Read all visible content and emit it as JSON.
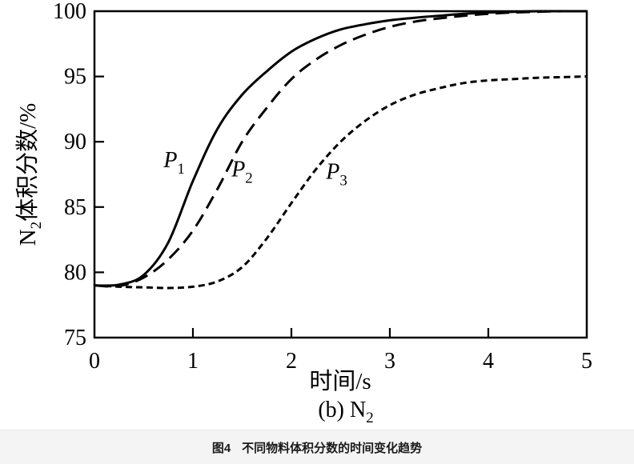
{
  "chart_data": {
    "type": "line",
    "title": "",
    "xlabel": "时间/s",
    "ylabel": {
      "pre": "N",
      "sub": "2",
      "post": "体积分数/%"
    },
    "subtitle": {
      "pre": "(b) N",
      "sub": "2"
    },
    "xlim": [
      0,
      5
    ],
    "ylim": [
      75,
      100
    ],
    "x_ticks": [
      "0",
      "1",
      "2",
      "3",
      "4",
      "5"
    ],
    "y_ticks": [
      "75",
      "80",
      "85",
      "90",
      "95",
      "100"
    ],
    "grid": false,
    "legend_position": "inline-labels",
    "line_color": "#000000",
    "series": [
      {
        "name": "P1",
        "label": {
          "main": "P",
          "sub": "1"
        },
        "line_style": "solid",
        "label_anchor": {
          "t": 0.81,
          "v": 88.6
        },
        "points": [
          [
            0,
            79.0
          ],
          [
            0.25,
            79.05
          ],
          [
            0.5,
            79.8
          ],
          [
            0.75,
            82.3
          ],
          [
            1.0,
            87.0
          ],
          [
            1.25,
            91.0
          ],
          [
            1.5,
            93.6
          ],
          [
            1.75,
            95.4
          ],
          [
            2.0,
            96.9
          ],
          [
            2.25,
            97.9
          ],
          [
            2.5,
            98.6
          ],
          [
            2.75,
            99.0
          ],
          [
            3.0,
            99.3
          ],
          [
            3.25,
            99.5
          ],
          [
            3.5,
            99.65
          ],
          [
            3.75,
            99.8
          ],
          [
            4.0,
            99.9
          ],
          [
            4.25,
            99.95
          ],
          [
            4.5,
            100.0
          ],
          [
            4.75,
            100.0
          ],
          [
            5.0,
            100.0
          ]
        ]
      },
      {
        "name": "P2",
        "label": {
          "main": "P",
          "sub": "2"
        },
        "line_style": "long-dash",
        "label_anchor": {
          "t": 1.5,
          "v": 87.9
        },
        "points": [
          [
            0,
            79.0
          ],
          [
            0.25,
            78.95
          ],
          [
            0.5,
            79.6
          ],
          [
            0.75,
            81.0
          ],
          [
            1.0,
            83.2
          ],
          [
            1.25,
            86.4
          ],
          [
            1.5,
            90.0
          ],
          [
            1.75,
            92.6
          ],
          [
            2.0,
            94.8
          ],
          [
            2.25,
            96.3
          ],
          [
            2.5,
            97.4
          ],
          [
            2.75,
            98.2
          ],
          [
            3.0,
            98.8
          ],
          [
            3.25,
            99.2
          ],
          [
            3.5,
            99.45
          ],
          [
            3.75,
            99.65
          ],
          [
            4.0,
            99.8
          ],
          [
            4.25,
            99.9
          ],
          [
            4.5,
            99.95
          ],
          [
            4.75,
            100.0
          ],
          [
            5.0,
            100.0
          ]
        ]
      },
      {
        "name": "P3",
        "label": {
          "main": "P",
          "sub": "3"
        },
        "line_style": "short-dash",
        "label_anchor": {
          "t": 2.46,
          "v": 87.7
        },
        "points": [
          [
            0,
            79.0
          ],
          [
            0.25,
            78.9
          ],
          [
            0.5,
            78.85
          ],
          [
            0.75,
            78.8
          ],
          [
            1.0,
            78.9
          ],
          [
            1.25,
            79.3
          ],
          [
            1.5,
            80.4
          ],
          [
            1.75,
            82.6
          ],
          [
            2.0,
            85.3
          ],
          [
            2.25,
            87.9
          ],
          [
            2.5,
            90.0
          ],
          [
            2.75,
            91.6
          ],
          [
            3.0,
            92.8
          ],
          [
            3.25,
            93.6
          ],
          [
            3.5,
            94.1
          ],
          [
            3.75,
            94.5
          ],
          [
            4.0,
            94.7
          ],
          [
            4.25,
            94.8
          ],
          [
            4.5,
            94.9
          ],
          [
            4.75,
            94.95
          ],
          [
            5.0,
            95.0
          ]
        ]
      }
    ]
  },
  "caption": {
    "fig_label": "图4",
    "text": "不同物料体积分数的时间变化趋势"
  }
}
